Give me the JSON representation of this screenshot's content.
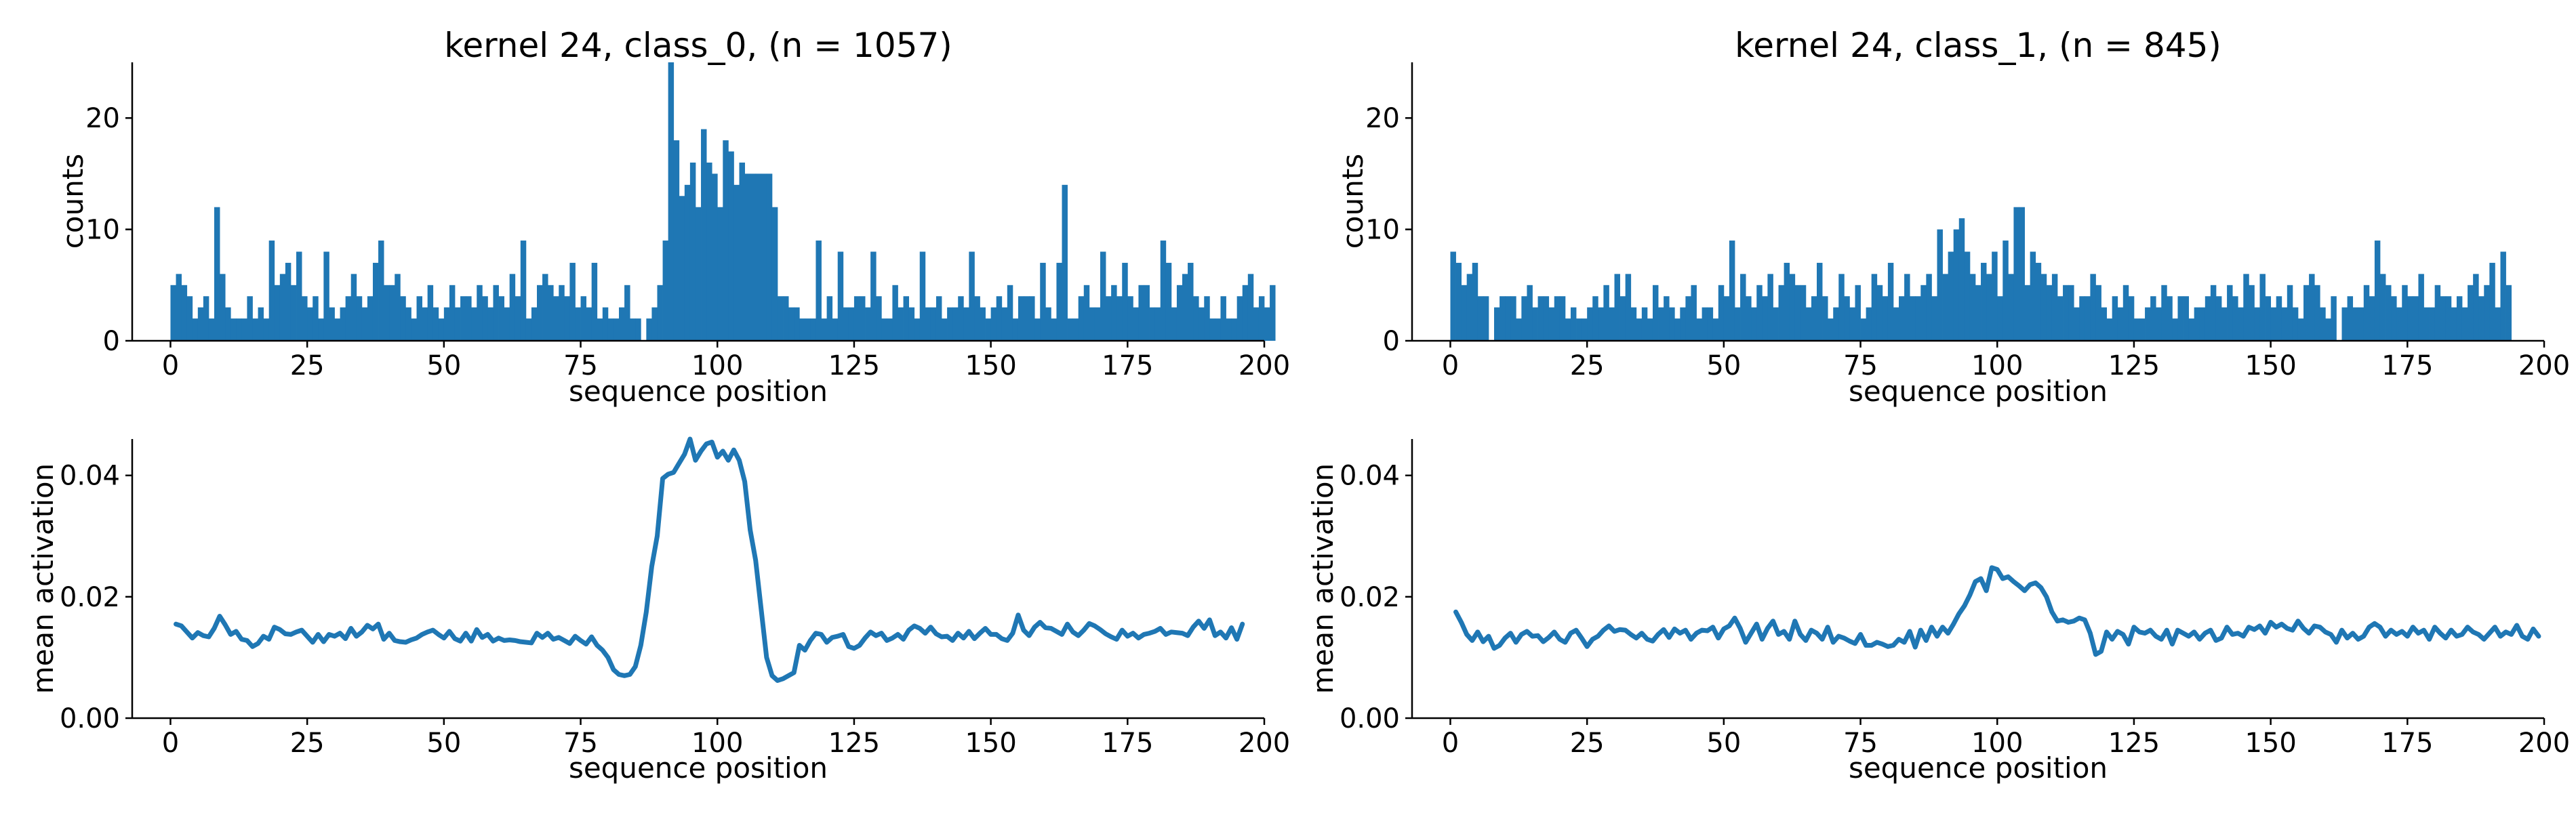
{
  "colors": {
    "series": "#1f77b4"
  },
  "chart_data": [
    {
      "id": "hist_class_0",
      "type": "bar",
      "title": "kernel 24, class_0, (n = 1057)",
      "xlabel": "sequence position",
      "ylabel": "counts",
      "xlim": [
        -7,
        200
      ],
      "ylim": [
        0,
        25
      ],
      "xticks": [
        0,
        25,
        50,
        75,
        100,
        125,
        150,
        175,
        200
      ],
      "yticks": [
        0,
        10,
        20
      ],
      "x_start": 0,
      "values": [
        5,
        6,
        5,
        4,
        2,
        3,
        4,
        2,
        12,
        6,
        3,
        2,
        2,
        2,
        4,
        2,
        3,
        2,
        9,
        5,
        6,
        7,
        5,
        8,
        4,
        3,
        4,
        2,
        8,
        3,
        2,
        3,
        4,
        6,
        4,
        3,
        4,
        7,
        9,
        5,
        5,
        6,
        4,
        3,
        2,
        4,
        3,
        5,
        3,
        2,
        3,
        5,
        3,
        4,
        4,
        3,
        5,
        4,
        3,
        5,
        4,
        3,
        6,
        4,
        9,
        2,
        3,
        5,
        6,
        5,
        4,
        5,
        4,
        7,
        3,
        4,
        3,
        7,
        2,
        3,
        2,
        2,
        3,
        5,
        2,
        2,
        0,
        2,
        3,
        5,
        9,
        25,
        18,
        13,
        14,
        16,
        12,
        19,
        16,
        15,
        12,
        18,
        17,
        14,
        16,
        15,
        15,
        15,
        15,
        15,
        12,
        4,
        4,
        3,
        3,
        2,
        2,
        2,
        9,
        2,
        4,
        2,
        8,
        3,
        3,
        4,
        4,
        3,
        8,
        4,
        2,
        2,
        5,
        3,
        4,
        3,
        2,
        8,
        3,
        3,
        4,
        2,
        3,
        3,
        4,
        3,
        8,
        4,
        3,
        2,
        3,
        4,
        3,
        5,
        2,
        4,
        4,
        4,
        2,
        7,
        3,
        2,
        7,
        14,
        2,
        2,
        4,
        5,
        3,
        3,
        8,
        4,
        5,
        4,
        7,
        4,
        3,
        5,
        5,
        3,
        3,
        9,
        7,
        3,
        5,
        6,
        7,
        4,
        3,
        4,
        2,
        2,
        4,
        2,
        2,
        4,
        5,
        6,
        3,
        4,
        3,
        5
      ]
    },
    {
      "id": "hist_class_1",
      "type": "bar",
      "title": "kernel 24, class_1, (n = 845)",
      "xlabel": "sequence position",
      "ylabel": "counts",
      "xlim": [
        -7,
        200
      ],
      "ylim": [
        0,
        25
      ],
      "xticks": [
        0,
        25,
        50,
        75,
        100,
        125,
        150,
        175,
        200
      ],
      "yticks": [
        0,
        10,
        20
      ],
      "x_start": 0,
      "values": [
        8,
        7,
        5,
        6,
        7,
        4,
        4,
        0,
        3,
        4,
        4,
        4,
        2,
        4,
        5,
        3,
        4,
        4,
        3,
        4,
        4,
        2,
        3,
        2,
        2,
        3,
        4,
        3,
        5,
        3,
        6,
        4,
        6,
        3,
        2,
        3,
        2,
        5,
        3,
        4,
        3,
        2,
        3,
        4,
        5,
        2,
        3,
        3,
        2,
        5,
        4,
        9,
        3,
        6,
        4,
        3,
        5,
        4,
        6,
        3,
        5,
        7,
        6,
        5,
        5,
        3,
        4,
        7,
        4,
        2,
        3,
        6,
        4,
        3,
        5,
        2,
        3,
        6,
        5,
        4,
        7,
        3,
        4,
        6,
        4,
        4,
        5,
        6,
        4,
        10,
        6,
        8,
        10,
        11,
        8,
        6,
        5,
        7,
        6,
        8,
        4,
        9,
        6,
        12,
        12,
        5,
        8,
        7,
        6,
        5,
        6,
        4,
        5,
        5,
        3,
        4,
        4,
        6,
        5,
        3,
        2,
        4,
        3,
        5,
        4,
        2,
        2,
        3,
        4,
        3,
        5,
        4,
        2,
        4,
        4,
        2,
        3,
        3,
        4,
        5,
        4,
        3,
        5,
        4,
        3,
        6,
        5,
        3,
        6,
        4,
        3,
        4,
        3,
        5,
        3,
        2,
        5,
        6,
        5,
        3,
        2,
        4,
        0,
        3,
        4,
        3,
        3,
        5,
        4,
        9,
        6,
        5,
        4,
        3,
        5,
        4,
        4,
        6,
        3,
        3,
        5,
        4,
        4,
        3,
        4,
        3,
        5,
        6,
        4,
        5,
        7,
        3,
        8,
        5
      ]
    },
    {
      "id": "line_class_0",
      "type": "line",
      "xlabel": "sequence position",
      "ylabel": "mean activation",
      "xlim": [
        -7,
        200
      ],
      "ylim": [
        0,
        0.046
      ],
      "xticks": [
        0,
        25,
        50,
        75,
        100,
        125,
        150,
        175,
        200
      ],
      "yticks": [
        0.0,
        0.02,
        0.04
      ],
      "ytick_labels": [
        "0.00",
        "0.02",
        "0.04"
      ],
      "x_start": 1,
      "values": [
        0.0155,
        0.0152,
        0.0142,
        0.0132,
        0.0141,
        0.0136,
        0.0134,
        0.0148,
        0.0168,
        0.0154,
        0.0138,
        0.0143,
        0.013,
        0.0128,
        0.0118,
        0.0123,
        0.0135,
        0.013,
        0.015,
        0.0146,
        0.0139,
        0.0138,
        0.0142,
        0.0145,
        0.0135,
        0.0125,
        0.0138,
        0.0126,
        0.0138,
        0.0135,
        0.014,
        0.0131,
        0.0148,
        0.0135,
        0.0142,
        0.0153,
        0.0147,
        0.0155,
        0.013,
        0.014,
        0.0128,
        0.0126,
        0.0125,
        0.0129,
        0.0132,
        0.0138,
        0.0142,
        0.0145,
        0.0138,
        0.0132,
        0.0143,
        0.0131,
        0.0127,
        0.014,
        0.0127,
        0.0146,
        0.0133,
        0.0138,
        0.0127,
        0.0132,
        0.0128,
        0.0129,
        0.0128,
        0.0126,
        0.0125,
        0.0124,
        0.014,
        0.0133,
        0.014,
        0.013,
        0.0133,
        0.0128,
        0.0123,
        0.0135,
        0.0128,
        0.0122,
        0.0134,
        0.012,
        0.0112,
        0.01,
        0.008,
        0.0072,
        0.007,
        0.0072,
        0.0085,
        0.012,
        0.0175,
        0.025,
        0.03,
        0.0395,
        0.0402,
        0.0405,
        0.042,
        0.0435,
        0.046,
        0.0425,
        0.044,
        0.0452,
        0.0455,
        0.043,
        0.044,
        0.0425,
        0.0442,
        0.0425,
        0.039,
        0.031,
        0.026,
        0.018,
        0.01,
        0.007,
        0.0062,
        0.0065,
        0.007,
        0.0075,
        0.012,
        0.0112,
        0.0128,
        0.014,
        0.0138,
        0.0125,
        0.0133,
        0.0135,
        0.0138,
        0.0118,
        0.0115,
        0.012,
        0.0132,
        0.0142,
        0.0136,
        0.014,
        0.0128,
        0.0132,
        0.0138,
        0.013,
        0.0145,
        0.0152,
        0.0148,
        0.014,
        0.015,
        0.0139,
        0.0134,
        0.0135,
        0.0128,
        0.014,
        0.0132,
        0.0143,
        0.0131,
        0.014,
        0.0148,
        0.0138,
        0.0138,
        0.0131,
        0.0128,
        0.014,
        0.017,
        0.0145,
        0.0136,
        0.015,
        0.0158,
        0.0149,
        0.0148,
        0.0143,
        0.0138,
        0.0155,
        0.0142,
        0.0136,
        0.0145,
        0.0156,
        0.0152,
        0.0146,
        0.0139,
        0.0134,
        0.013,
        0.0145,
        0.0135,
        0.014,
        0.0132,
        0.0138,
        0.014,
        0.0143,
        0.0148,
        0.0138,
        0.0142,
        0.0141,
        0.014,
        0.0136,
        0.015,
        0.016,
        0.0148,
        0.0162,
        0.0136,
        0.0142,
        0.0132,
        0.0149,
        0.013,
        0.0155
      ]
    },
    {
      "id": "line_class_1",
      "type": "line",
      "xlabel": "sequence position",
      "ylabel": "mean activation",
      "xlim": [
        -7,
        200
      ],
      "ylim": [
        0,
        0.046
      ],
      "xticks": [
        0,
        25,
        50,
        75,
        100,
        125,
        150,
        175,
        200
      ],
      "yticks": [
        0.0,
        0.02,
        0.04
      ],
      "ytick_labels": [
        "0.00",
        "0.02",
        "0.04"
      ],
      "x_start": 1,
      "values": [
        0.0175,
        0.0158,
        0.0138,
        0.0128,
        0.0142,
        0.0126,
        0.0135,
        0.0115,
        0.012,
        0.0132,
        0.014,
        0.0125,
        0.0138,
        0.0143,
        0.0135,
        0.0136,
        0.0126,
        0.0133,
        0.0142,
        0.013,
        0.0125,
        0.014,
        0.0145,
        0.0132,
        0.0118,
        0.013,
        0.0135,
        0.0145,
        0.0152,
        0.0143,
        0.0146,
        0.0145,
        0.0138,
        0.0132,
        0.014,
        0.013,
        0.0127,
        0.0138,
        0.0146,
        0.0133,
        0.0147,
        0.014,
        0.0145,
        0.013,
        0.014,
        0.0145,
        0.0144,
        0.015,
        0.0132,
        0.0147,
        0.0152,
        0.0165,
        0.0148,
        0.0125,
        0.014,
        0.0155,
        0.013,
        0.0148,
        0.016,
        0.0138,
        0.0143,
        0.013,
        0.016,
        0.0138,
        0.0128,
        0.0145,
        0.014,
        0.013,
        0.015,
        0.0125,
        0.0135,
        0.0132,
        0.0127,
        0.0123,
        0.0138,
        0.012,
        0.012,
        0.0125,
        0.0122,
        0.0118,
        0.012,
        0.013,
        0.0125,
        0.0143,
        0.0117,
        0.0145,
        0.0128,
        0.015,
        0.0135,
        0.015,
        0.014,
        0.0155,
        0.0172,
        0.0185,
        0.0203,
        0.0225,
        0.023,
        0.021,
        0.0248,
        0.0245,
        0.023,
        0.0233,
        0.0225,
        0.0218,
        0.021,
        0.022,
        0.0223,
        0.0215,
        0.02,
        0.0175,
        0.016,
        0.0162,
        0.0158,
        0.016,
        0.0165,
        0.0162,
        0.014,
        0.0105,
        0.011,
        0.0142,
        0.013,
        0.0143,
        0.0138,
        0.0122,
        0.015,
        0.0142,
        0.014,
        0.0145,
        0.0135,
        0.013,
        0.0145,
        0.0122,
        0.0145,
        0.014,
        0.0135,
        0.0142,
        0.013,
        0.014,
        0.0145,
        0.0128,
        0.0132,
        0.015,
        0.0138,
        0.014,
        0.0135,
        0.015,
        0.0146,
        0.0152,
        0.014,
        0.0158,
        0.015,
        0.0155,
        0.0148,
        0.0145,
        0.016,
        0.0148,
        0.014,
        0.0152,
        0.015,
        0.0142,
        0.0138,
        0.0125,
        0.0145,
        0.0132,
        0.014,
        0.013,
        0.0135,
        0.015,
        0.0156,
        0.015,
        0.0135,
        0.0145,
        0.0138,
        0.0143,
        0.0135,
        0.015,
        0.014,
        0.0145,
        0.013,
        0.015,
        0.014,
        0.0132,
        0.0145,
        0.0135,
        0.0138,
        0.015,
        0.0142,
        0.0138,
        0.013,
        0.014,
        0.015,
        0.0135,
        0.0142,
        0.0138,
        0.0153,
        0.0135,
        0.013,
        0.0147,
        0.0135
      ]
    }
  ]
}
